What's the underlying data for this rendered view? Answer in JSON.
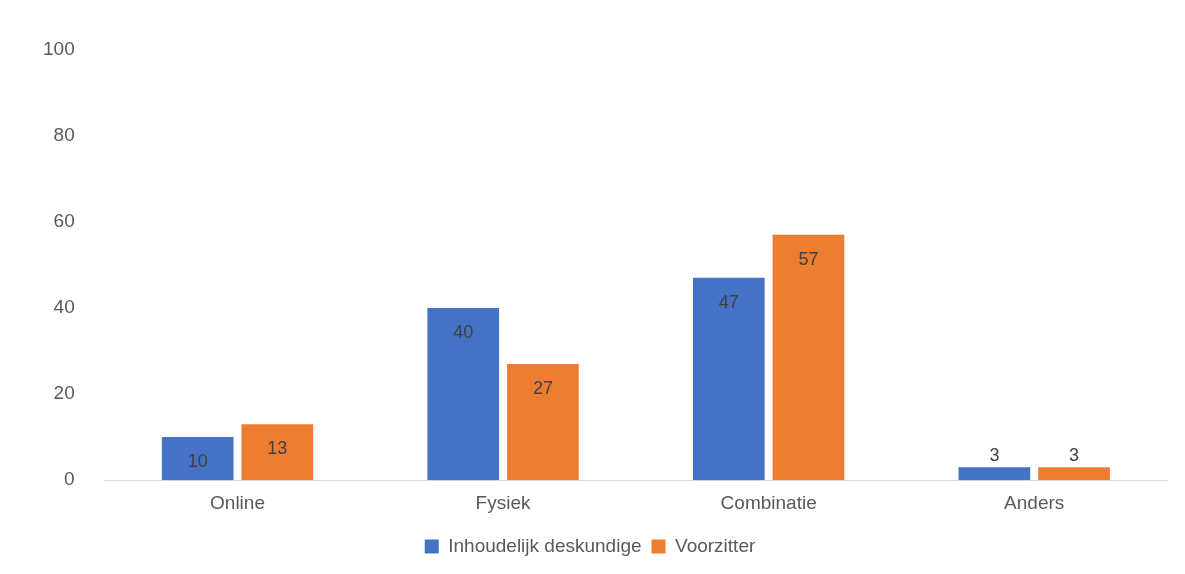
{
  "chart_data": {
    "type": "bar",
    "categories": [
      "Online",
      "Fysiek",
      "Combinatie",
      "Anders"
    ],
    "series": [
      {
        "name": "Inhoudelijk deskundige",
        "color": "#4472c4",
        "values": [
          10,
          40,
          47,
          3
        ]
      },
      {
        "name": "Voorzitter",
        "color": "#ed7d31",
        "values": [
          13,
          27,
          57,
          3
        ]
      }
    ],
    "ylim": [
      0,
      100
    ],
    "yticks": [
      0,
      20,
      40,
      60,
      80,
      100
    ],
    "grid": false,
    "legend": "bottom",
    "data_labels": true
  }
}
